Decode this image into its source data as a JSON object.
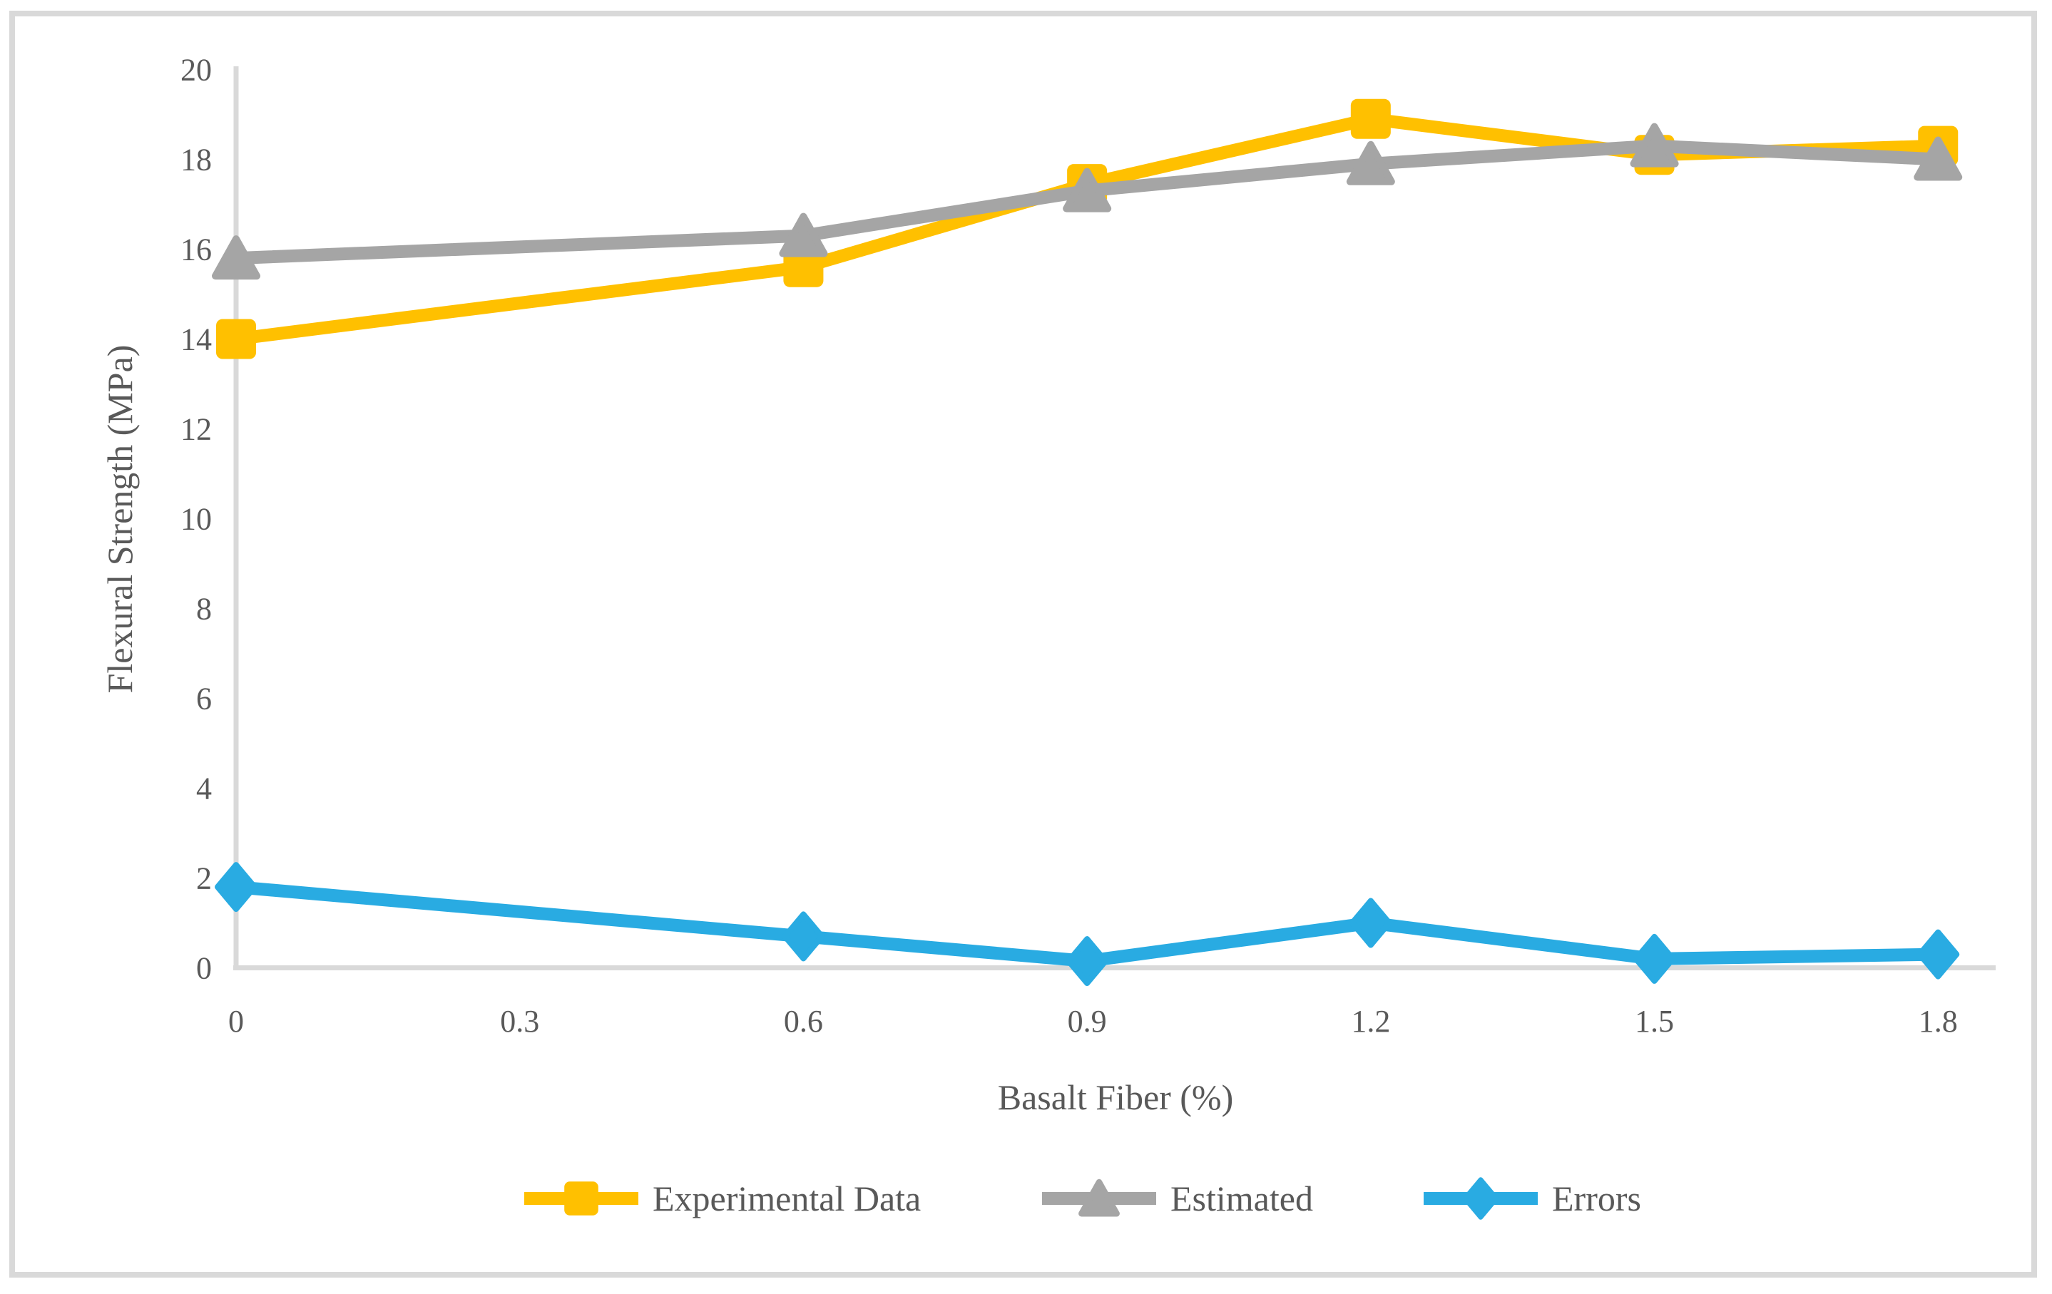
{
  "chart_data": {
    "type": "line",
    "title": "",
    "xlabel": "Basalt Fiber (%)",
    "ylabel": "Flexural Strength (MPa)",
    "x": [
      0,
      0.6,
      0.9,
      1.2,
      1.5,
      1.8
    ],
    "series": [
      {
        "name": "Experimental Data",
        "color": "#FFC000",
        "marker": "square",
        "values": [
          14.0,
          15.6,
          17.45,
          18.9,
          18.1,
          18.3
        ]
      },
      {
        "name": "Estimated",
        "color": "#A5A5A5",
        "marker": "triangle",
        "values": [
          15.8,
          16.3,
          17.3,
          17.9,
          18.3,
          18.0
        ]
      },
      {
        "name": "Errors",
        "color": "#29ABE2",
        "marker": "diamond",
        "values": [
          1.8,
          0.7,
          0.15,
          1.0,
          0.2,
          0.3
        ]
      }
    ],
    "x_ticks": [
      0,
      0.3,
      0.6,
      0.9,
      1.2,
      1.5,
      1.8
    ],
    "x_tick_labels": [
      "0",
      "0.3",
      "0.6",
      "0.9",
      "1.2",
      "1.5",
      "1.8"
    ],
    "y_ticks": [
      0,
      2,
      4,
      6,
      8,
      10,
      12,
      14,
      16,
      18,
      20
    ],
    "y_tick_labels": [
      "0",
      "2",
      "4",
      "6",
      "8",
      "10",
      "12",
      "14",
      "16",
      "18",
      "20"
    ],
    "ylim": [
      0,
      20
    ],
    "xlim": [
      0,
      1.86
    ],
    "grid": false,
    "legend_position": "bottom",
    "legend_labels": [
      "Experimental Data",
      "Estimated",
      "Errors"
    ],
    "axis_color": "#D9D9D9",
    "frame_color": "#D9D9D9",
    "text_color": "#595959"
  }
}
